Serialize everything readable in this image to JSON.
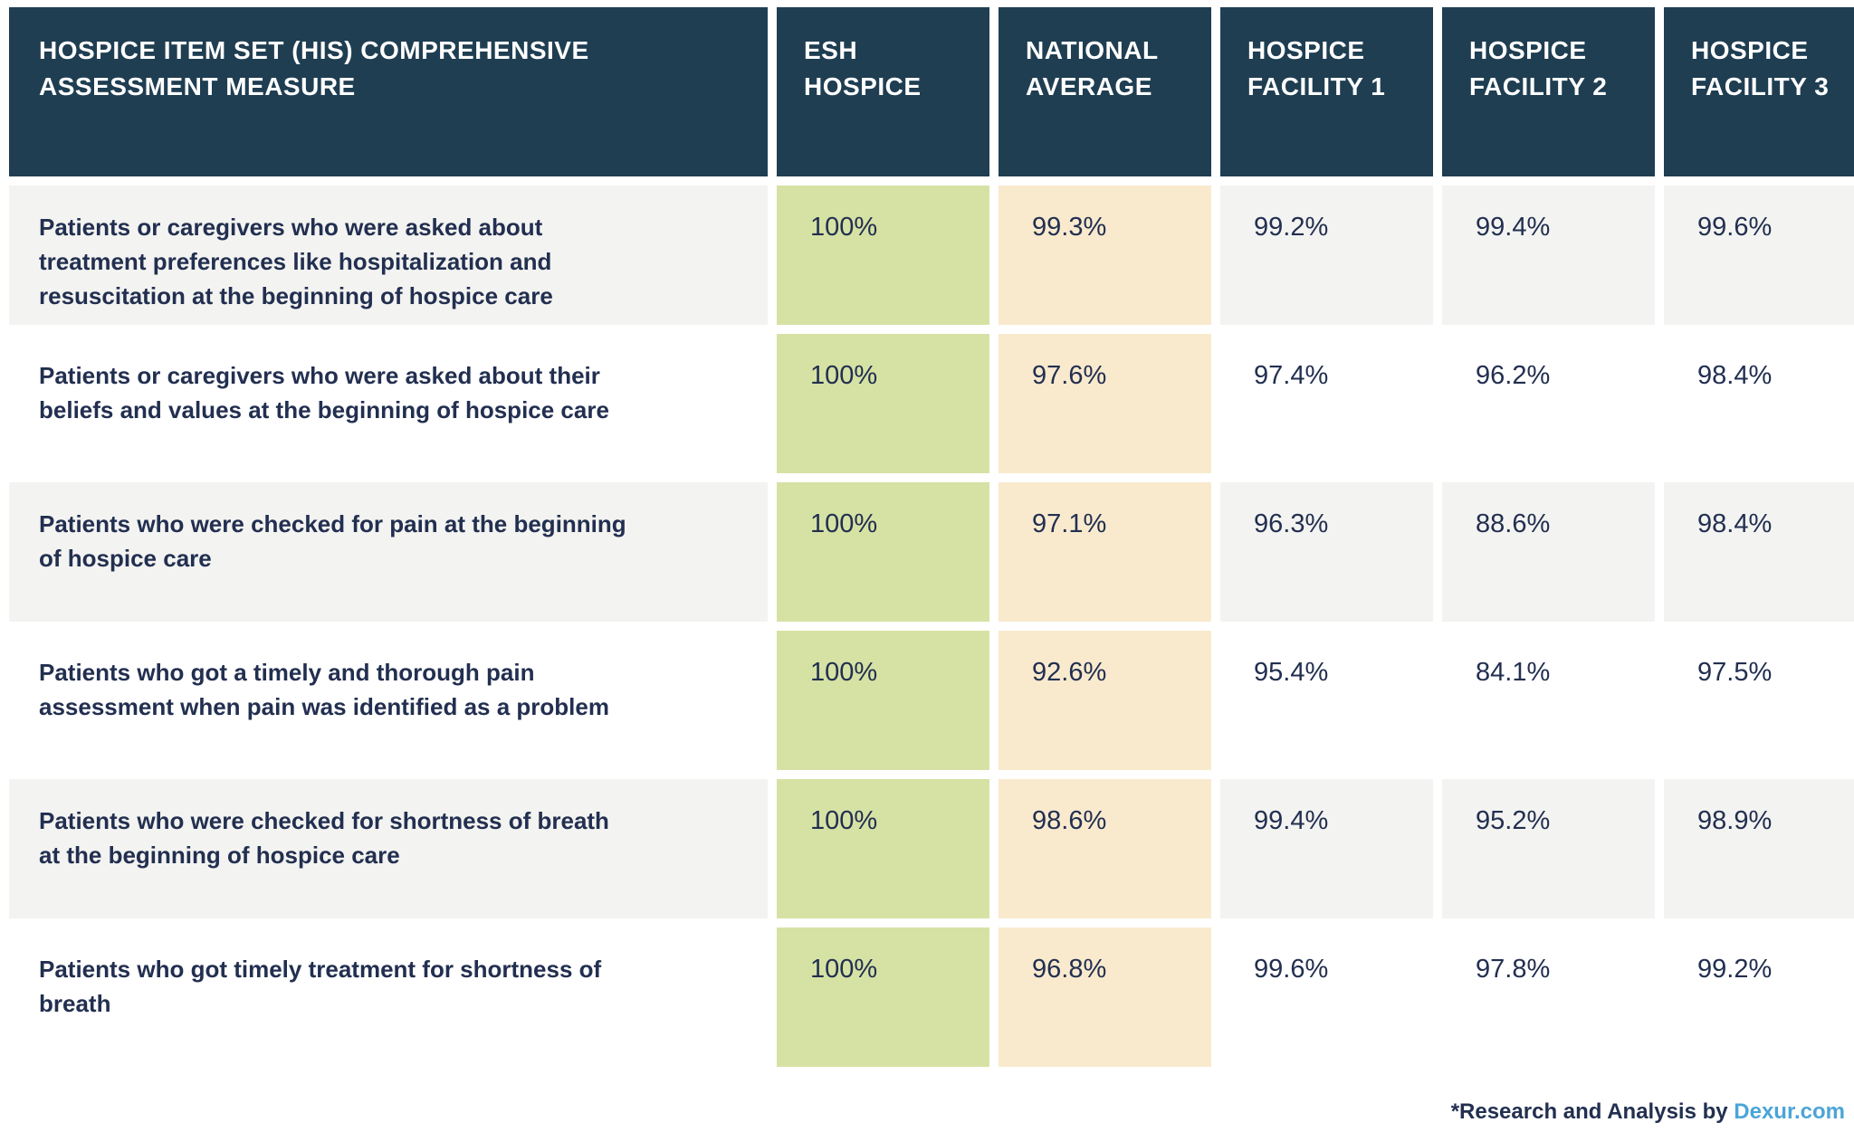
{
  "colors": {
    "header_bg": "#1F3E52",
    "highlight_green": "#D6E2A4",
    "highlight_cream": "#F9EACE",
    "row_alt_gray": "#F3F3F1",
    "text_navy": "#222F50",
    "link_blue": "#4BA5D8"
  },
  "table": {
    "header": {
      "measure": "HOSPICE ITEM SET (HIS) COMPREHENSIVE\nASSESSMENT MEASURE",
      "columns": [
        "ESH\nHOSPICE",
        "NATIONAL\nAVERAGE",
        "HOSPICE\nFACILITY 1",
        "HOSPICE\nFACILITY 2",
        "HOSPICE\nFACILITY 3"
      ]
    },
    "rows": [
      {
        "measure": "Patients or caregivers who were asked about\ntreatment preferences like hospitalization and\nresuscitation at the beginning of hospice care",
        "values": [
          "100%",
          "99.3%",
          "99.2%",
          "99.4%",
          "99.6%"
        ]
      },
      {
        "measure": "Patients or caregivers who were asked about their\nbeliefs and values at the beginning of hospice care",
        "values": [
          "100%",
          "97.6%",
          "97.4%",
          "96.2%",
          "98.4%"
        ]
      },
      {
        "measure": "Patients who were checked for pain at the beginning\nof hospice care",
        "values": [
          "100%",
          "97.1%",
          "96.3%",
          "88.6%",
          "98.4%"
        ]
      },
      {
        "measure": "Patients who got a timely and thorough pain\nassessment when pain was identified as a problem",
        "values": [
          "100%",
          "92.6%",
          "95.4%",
          "84.1%",
          "97.5%"
        ]
      },
      {
        "measure": "Patients who were checked for shortness of breath\nat the beginning of hospice care",
        "values": [
          "100%",
          "98.6%",
          "99.4%",
          "95.2%",
          "98.9%"
        ]
      },
      {
        "measure": "Patients who got timely treatment for shortness of\nbreath",
        "values": [
          "100%",
          "96.8%",
          "99.6%",
          "97.8%",
          "99.2%"
        ]
      }
    ]
  },
  "footer": {
    "prefix": "*Research and Analysis by ",
    "link_label": "Dexur.com"
  },
  "chart_data": {
    "type": "table",
    "title": "Hospice Item Set (HIS) Comprehensive Assessment Measure",
    "columns": [
      "HOSPICE ITEM SET (HIS) COMPREHENSIVE ASSESSMENT MEASURE",
      "ESH HOSPICE",
      "NATIONAL AVERAGE",
      "HOSPICE FACILITY 1",
      "HOSPICE FACILITY 2",
      "HOSPICE FACILITY 3"
    ],
    "rows": [
      [
        "Patients or caregivers who were asked about treatment preferences like hospitalization and resuscitation at the beginning of hospice care",
        100,
        99.3,
        99.2,
        99.4,
        99.6
      ],
      [
        "Patients or caregivers who were asked about their beliefs and values at the beginning of hospice care",
        100,
        97.6,
        97.4,
        96.2,
        98.4
      ],
      [
        "Patients who were checked for pain at the beginning of hospice care",
        100,
        97.1,
        96.3,
        88.6,
        98.4
      ],
      [
        "Patients who got a timely and thorough pain assessment when pain was identified as a problem",
        100,
        92.6,
        95.4,
        84.1,
        97.5
      ],
      [
        "Patients who were checked for shortness of breath at the beginning of hospice care",
        100,
        98.6,
        99.4,
        95.2,
        98.9
      ],
      [
        "Patients who got timely treatment for shortness of breath",
        100,
        96.8,
        99.6,
        97.8,
        99.2
      ]
    ],
    "units": "percent",
    "note": "*Research and Analysis by Dexur.com"
  }
}
